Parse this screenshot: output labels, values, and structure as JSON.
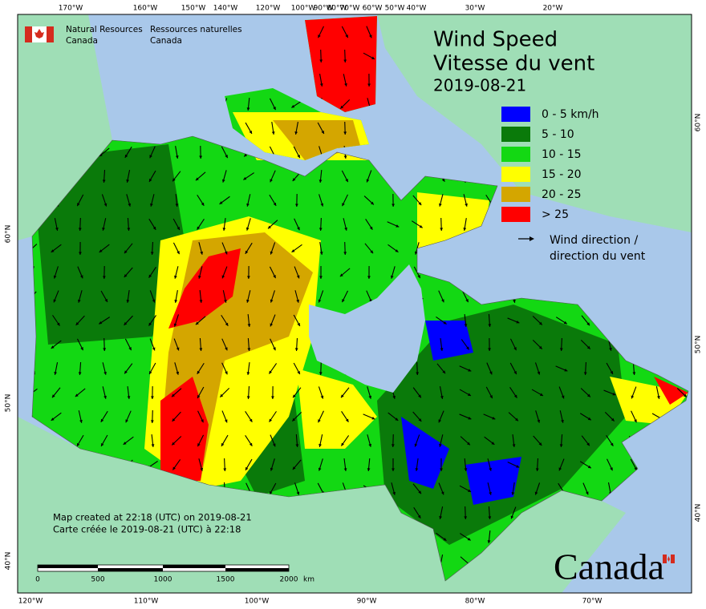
{
  "header": {
    "agency_en": [
      "Natural Resources",
      "Canada"
    ],
    "agency_fr": [
      "Ressources naturelles",
      "Canada"
    ]
  },
  "title": {
    "line1": "Wind Speed",
    "line2": "Vitesse du vent",
    "date": "2019-08-21"
  },
  "legend": {
    "items": [
      {
        "label": "0 - 5 km/h",
        "color": "#0000ff"
      },
      {
        "label": "5 - 10",
        "color": "#0a7a0a"
      },
      {
        "label": "10 - 15",
        "color": "#13d813"
      },
      {
        "label": "15 - 20",
        "color": "#ffff00"
      },
      {
        "label": "20 - 25",
        "color": "#d4a600"
      },
      {
        "label": "> 25",
        "color": "#ff0000"
      }
    ],
    "direction": [
      "Wind direction /",
      "direction du vent"
    ]
  },
  "graticule": {
    "top": [
      "170°W",
      "160°W",
      "150°W",
      "140°W",
      "120°W",
      "100°W",
      "90°W",
      "80°W",
      "70°W",
      "60°W",
      "50°W",
      "40°W",
      "30°W",
      "20°W"
    ],
    "bottom": [
      "120°W",
      "110°W",
      "100°W",
      "90°W",
      "80°W",
      "70°W"
    ],
    "left": [
      "60°N",
      "50°N",
      "40°N"
    ],
    "right": [
      "60°N",
      "50°N",
      "40°N"
    ]
  },
  "note": [
    "Map created at 22:18 (UTC) on 2019-08-21",
    "Carte créée le 2019-08-21 (UTC) à 22:18"
  ],
  "scale_bar": {
    "labels": [
      "0",
      "500",
      "1000",
      "1500",
      "2000"
    ],
    "unit": "km"
  },
  "wordmark": "Canada"
}
